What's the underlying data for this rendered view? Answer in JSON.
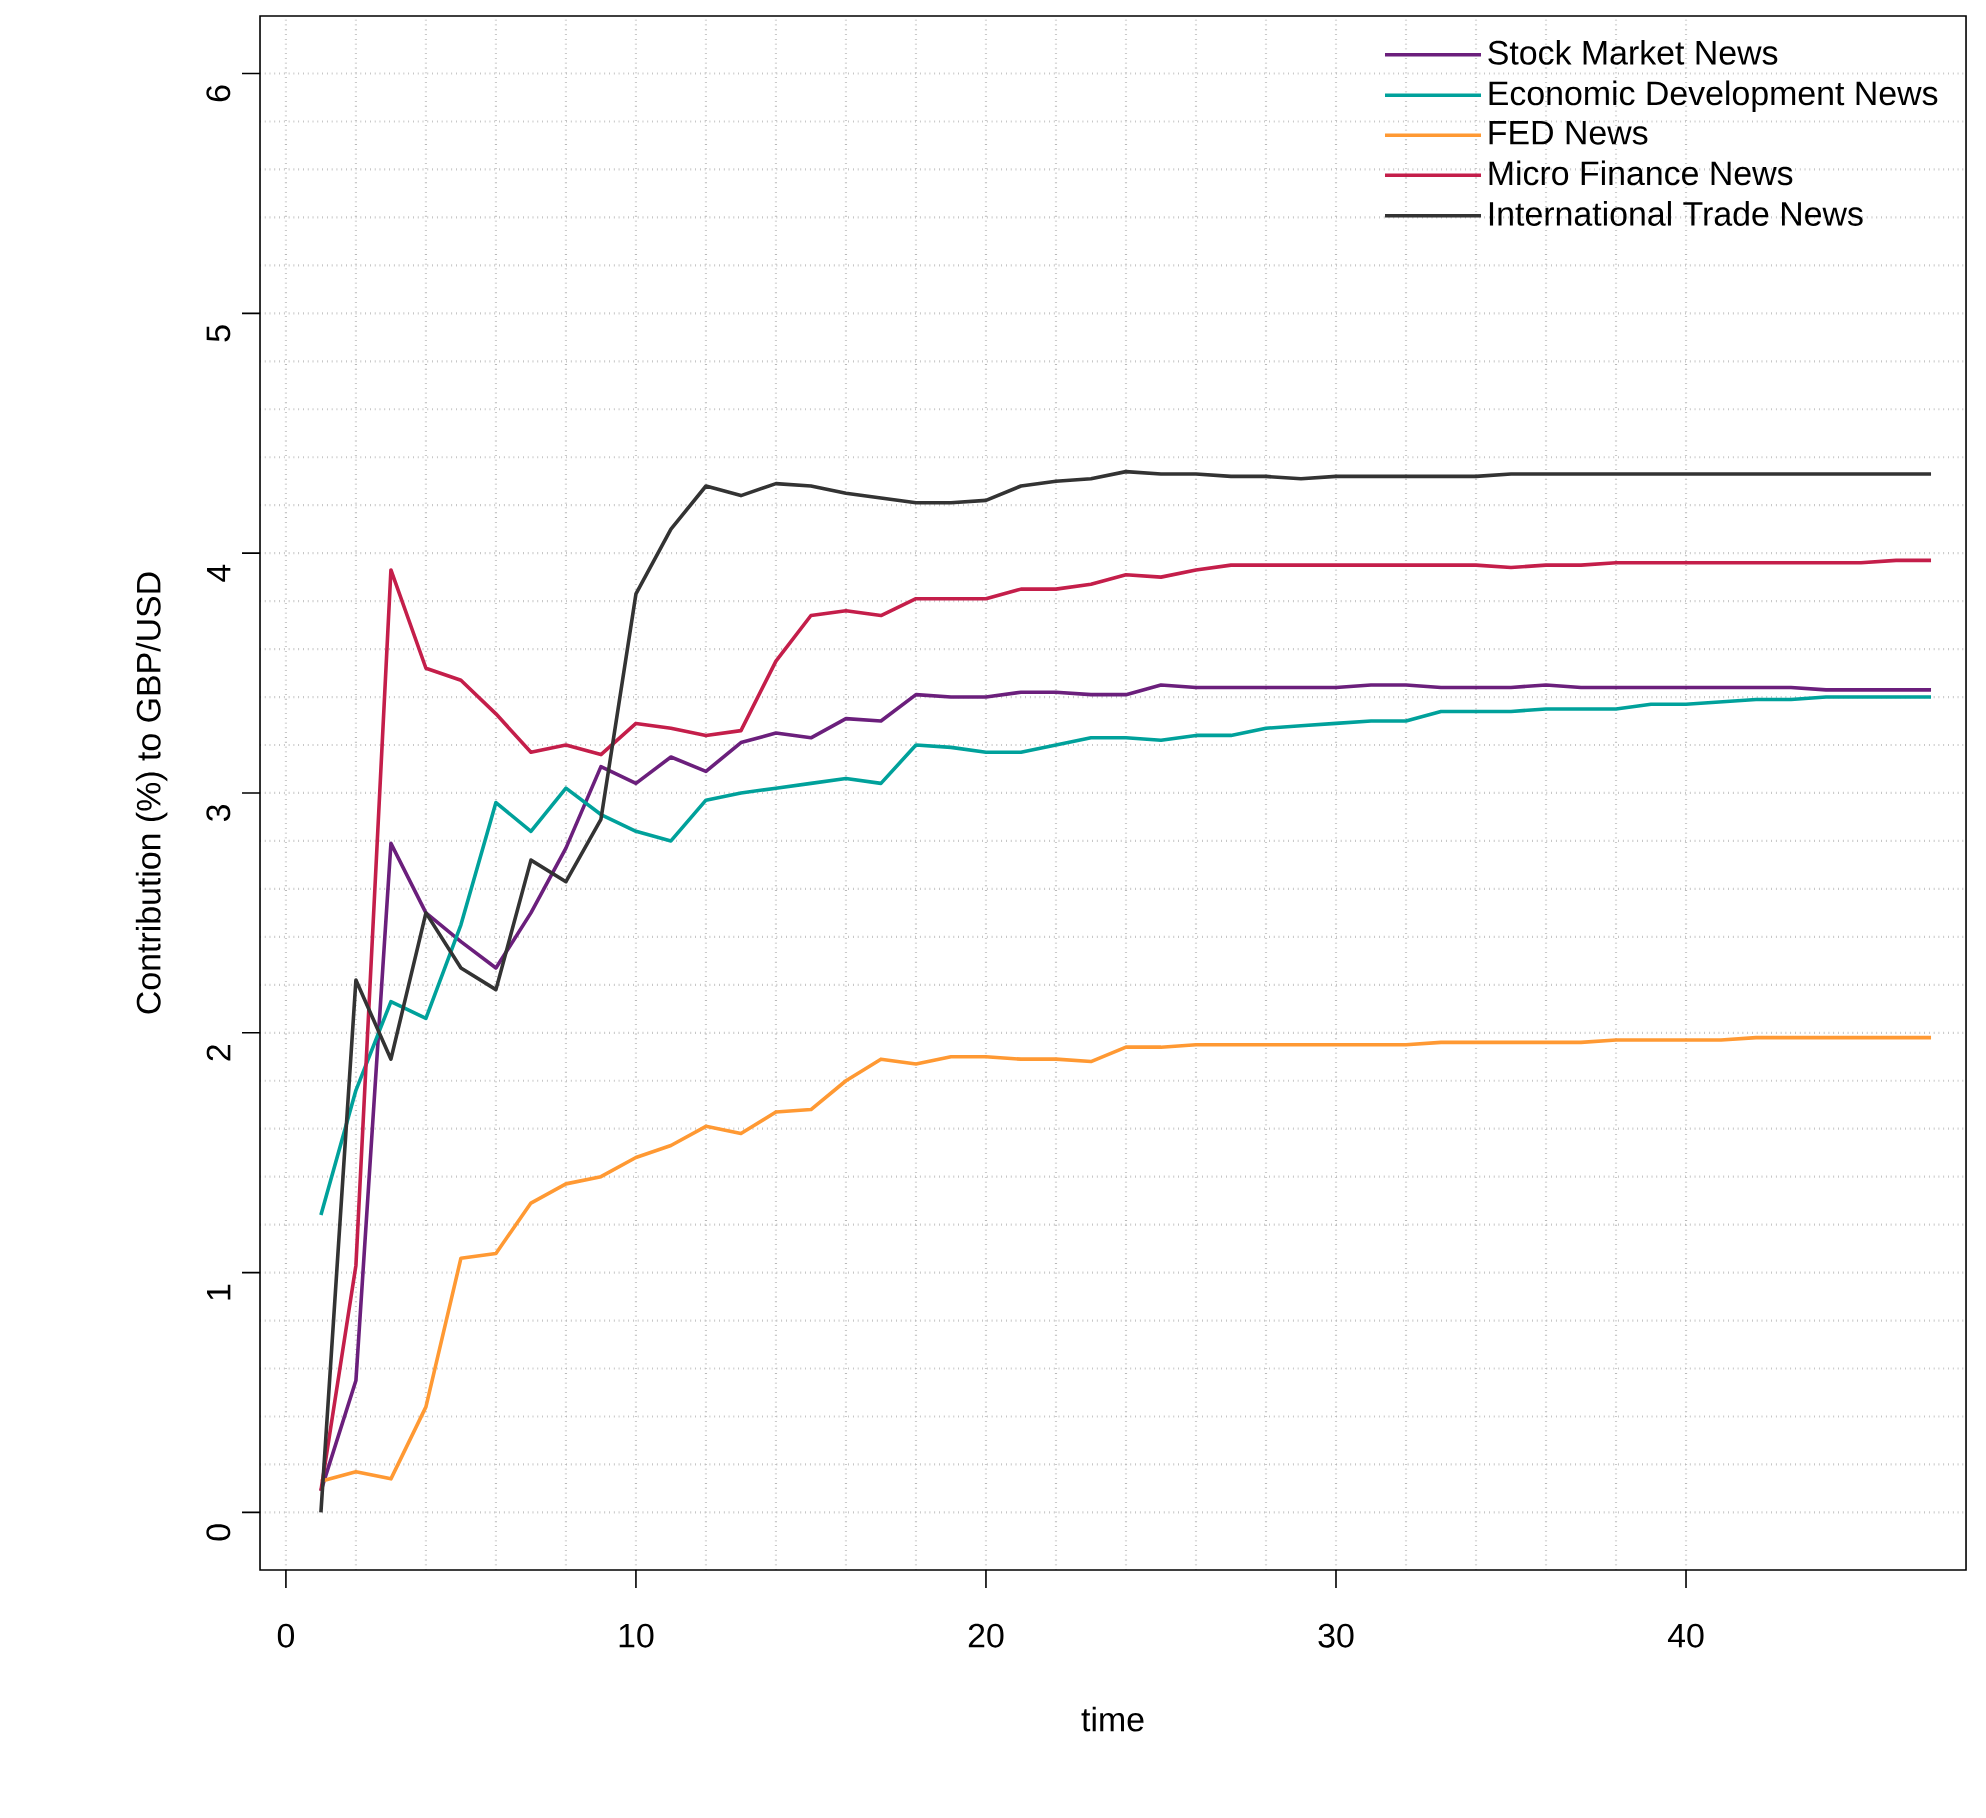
{
  "chart_data": {
    "type": "line",
    "xlabel": "time",
    "ylabel": "Contribution (%) to GBP/USD",
    "x": [
      1,
      2,
      3,
      4,
      5,
      6,
      7,
      8,
      9,
      10,
      11,
      12,
      13,
      14,
      15,
      16,
      17,
      18,
      19,
      20,
      21,
      22,
      23,
      24,
      25,
      26,
      27,
      28,
      29,
      30,
      31,
      32,
      33,
      34,
      35,
      36,
      37,
      38,
      39,
      40,
      41,
      42,
      43,
      44,
      45,
      46,
      47
    ],
    "series": [
      {
        "name": "Stock Market News",
        "color": "#6b1f7c",
        "values": [
          0.09,
          0.55,
          2.79,
          2.5,
          2.38,
          2.27,
          2.5,
          2.77,
          3.11,
          3.04,
          3.15,
          3.09,
          3.21,
          3.25,
          3.23,
          3.31,
          3.3,
          3.41,
          3.4,
          3.4,
          3.42,
          3.42,
          3.41,
          3.41,
          3.45,
          3.44,
          3.44,
          3.44,
          3.44,
          3.44,
          3.45,
          3.45,
          3.44,
          3.44,
          3.44,
          3.45,
          3.44,
          3.44,
          3.44,
          3.44,
          3.44,
          3.44,
          3.44,
          3.43,
          3.43,
          3.43,
          3.43
        ]
      },
      {
        "name": "Economic Development News",
        "color": "#00a19b",
        "values": [
          1.24,
          1.76,
          2.13,
          2.06,
          2.45,
          2.96,
          2.84,
          3.02,
          2.91,
          2.84,
          2.8,
          2.97,
          3.0,
          3.02,
          3.04,
          3.06,
          3.04,
          3.2,
          3.19,
          3.17,
          3.17,
          3.2,
          3.23,
          3.23,
          3.22,
          3.24,
          3.24,
          3.27,
          3.28,
          3.29,
          3.3,
          3.3,
          3.34,
          3.34,
          3.34,
          3.35,
          3.35,
          3.35,
          3.37,
          3.37,
          3.38,
          3.39,
          3.39,
          3.4,
          3.4,
          3.4,
          3.4
        ]
      },
      {
        "name": "FED News",
        "color": "#ff9933",
        "values": [
          0.13,
          0.17,
          0.14,
          0.44,
          1.06,
          1.08,
          1.29,
          1.37,
          1.4,
          1.48,
          1.53,
          1.61,
          1.58,
          1.67,
          1.68,
          1.8,
          1.89,
          1.87,
          1.9,
          1.9,
          1.89,
          1.89,
          1.88,
          1.94,
          1.94,
          1.95,
          1.95,
          1.95,
          1.95,
          1.95,
          1.95,
          1.95,
          1.96,
          1.96,
          1.96,
          1.96,
          1.96,
          1.97,
          1.97,
          1.97,
          1.97,
          1.98,
          1.98,
          1.98,
          1.98,
          1.98,
          1.98
        ]
      },
      {
        "name": "Micro Finance News",
        "color": "#c41e4a",
        "values": [
          0.09,
          1.03,
          3.93,
          3.52,
          3.47,
          3.33,
          3.17,
          3.2,
          3.16,
          3.29,
          3.27,
          3.24,
          3.26,
          3.55,
          3.74,
          3.76,
          3.74,
          3.81,
          3.81,
          3.81,
          3.85,
          3.85,
          3.87,
          3.91,
          3.9,
          3.93,
          3.95,
          3.95,
          3.95,
          3.95,
          3.95,
          3.95,
          3.95,
          3.95,
          3.94,
          3.95,
          3.95,
          3.96,
          3.96,
          3.96,
          3.96,
          3.96,
          3.96,
          3.96,
          3.96,
          3.97,
          3.97
        ]
      },
      {
        "name": "International Trade News",
        "color": "#333333",
        "values": [
          0.0,
          2.22,
          1.89,
          2.5,
          2.27,
          2.18,
          2.72,
          2.63,
          2.89,
          3.83,
          4.1,
          4.28,
          4.24,
          4.29,
          4.28,
          4.25,
          4.23,
          4.21,
          4.21,
          4.22,
          4.28,
          4.3,
          4.31,
          4.34,
          4.33,
          4.33,
          4.32,
          4.32,
          4.31,
          4.32,
          4.32,
          4.32,
          4.32,
          4.32,
          4.33,
          4.33,
          4.33,
          4.33,
          4.33,
          4.33,
          4.33,
          4.33,
          4.33,
          4.33,
          4.33,
          4.33,
          4.33
        ]
      }
    ],
    "xlim": [
      -0.74,
      48
    ],
    "ylim": [
      -0.24,
      6.24
    ],
    "xticks": [
      0,
      10,
      20,
      30,
      40
    ],
    "yticks": [
      0,
      1,
      2,
      3,
      4,
      5,
      6
    ],
    "grid": true,
    "legend": "top right",
    "line_style": "solid"
  }
}
